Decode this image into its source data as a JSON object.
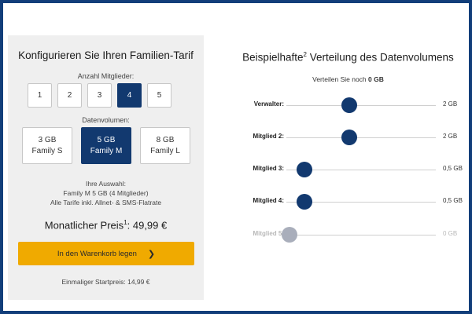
{
  "left": {
    "title": "Konfigurieren Sie Ihren Familien-Tarif",
    "members_label": "Anzahl Mitglieder:",
    "members": [
      "1",
      "2",
      "3",
      "4",
      "5"
    ],
    "members_selected": "4",
    "volume_label": "Datenvolumen:",
    "plans": [
      {
        "gb": "3 GB",
        "name": "Family S",
        "active": false
      },
      {
        "gb": "5 GB",
        "name": "Family M",
        "active": true
      },
      {
        "gb": "8 GB",
        "name": "Family L",
        "active": false
      }
    ],
    "selection_heading": "Ihre Auswahl:",
    "selection_line1": "Family M 5 GB (4 Mitglieder)",
    "selection_line2": "Alle Tarife inkl. Allnet- & SMS-Flatrate",
    "price_label": "Monatlicher Preis",
    "price_sup": "1",
    "price_value": ": 49,99 €",
    "cart_button": "In den Warenkorb legen",
    "start_price": "Einmaliger Startpreis: 14,99 €"
  },
  "right": {
    "title_pre": "Beispielhafte",
    "title_sup": "2",
    "title_post": " Verteilung des Datenvolumens",
    "remaining_pre": "Verteilen Sie noch ",
    "remaining_value": "0 GB",
    "sliders": [
      {
        "label": "Verwalter:",
        "value": "2 GB",
        "fraction": 0.4,
        "disabled": false
      },
      {
        "label": "Mitglied 2:",
        "value": "2 GB",
        "fraction": 0.4,
        "disabled": false
      },
      {
        "label": "Mitglied 3:",
        "value": "0,5 GB",
        "fraction": 0.1,
        "disabled": false
      },
      {
        "label": "Mitglied 4:",
        "value": "0,5 GB",
        "fraction": 0.1,
        "disabled": false
      },
      {
        "label": "Mitglied 5:",
        "value": "0 GB",
        "fraction": 0.0,
        "disabled": true
      }
    ]
  },
  "colors": {
    "primary": "#12396f",
    "accent": "#f0aa00",
    "panel_bg": "#efefef",
    "frame": "#123e7a"
  }
}
